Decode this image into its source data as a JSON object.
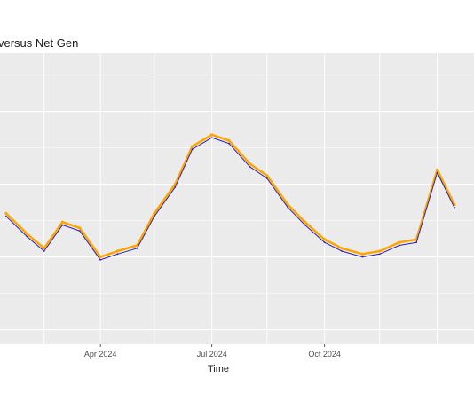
{
  "chart_data": {
    "type": "line",
    "title": "versus Net Gen",
    "xlabel": "Time",
    "ylabel": "",
    "x_ticks": [
      "Apr 2024",
      "Jul 2024",
      "Oct 2024"
    ],
    "x_range": [
      "2024-01-10",
      "2025-01-31"
    ],
    "y_range": [
      0,
      1
    ],
    "grid": true,
    "legend": "none",
    "series": [
      {
        "color": "#FFA500",
        "x": [
          "2024-01-15",
          "2024-02-01",
          "2024-02-15",
          "2024-03-01",
          "2024-03-15",
          "2024-04-01",
          "2024-04-15",
          "2024-05-01",
          "2024-05-15",
          "2024-06-01",
          "2024-06-15",
          "2024-07-01",
          "2024-07-15",
          "2024-08-01",
          "2024-08-15",
          "2024-09-01",
          "2024-09-15",
          "2024-10-01",
          "2024-10-15",
          "2024-11-01",
          "2024-11-15",
          "2024-12-01",
          "2024-12-15",
          "2025-01-01",
          "2025-01-15"
        ],
        "y": [
          0.45,
          0.38,
          0.33,
          0.42,
          0.4,
          0.3,
          0.32,
          0.34,
          0.45,
          0.55,
          0.68,
          0.72,
          0.7,
          0.62,
          0.58,
          0.48,
          0.42,
          0.36,
          0.33,
          0.31,
          0.32,
          0.35,
          0.36,
          0.6,
          0.48
        ]
      },
      {
        "color": "#2B1FB0",
        "x": [
          "2024-01-15",
          "2024-02-01",
          "2024-02-15",
          "2024-03-01",
          "2024-03-15",
          "2024-04-01",
          "2024-04-15",
          "2024-05-01",
          "2024-05-15",
          "2024-06-01",
          "2024-06-15",
          "2024-07-01",
          "2024-07-15",
          "2024-08-01",
          "2024-08-15",
          "2024-09-01",
          "2024-09-15",
          "2024-10-01",
          "2024-10-15",
          "2024-11-01",
          "2024-11-15",
          "2024-12-01",
          "2024-12-15",
          "2025-01-01",
          "2025-01-15"
        ],
        "y": [
          0.44,
          0.37,
          0.32,
          0.41,
          0.39,
          0.29,
          0.31,
          0.33,
          0.44,
          0.54,
          0.67,
          0.71,
          0.69,
          0.61,
          0.57,
          0.47,
          0.41,
          0.35,
          0.32,
          0.3,
          0.31,
          0.34,
          0.35,
          0.59,
          0.47
        ]
      }
    ]
  }
}
